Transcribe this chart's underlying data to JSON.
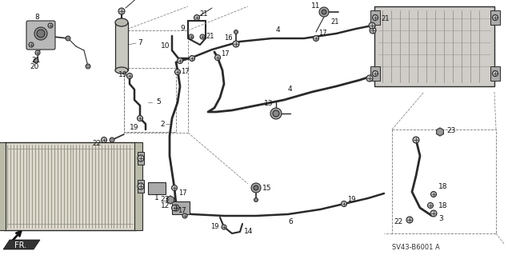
{
  "background_color": "#f5f5f0",
  "diagram_code": "SV43-B6001 A",
  "fr_label": "FR.",
  "line_color": "#2a2a2a",
  "label_color": "#111111",
  "component_fill": "#c8c8c8",
  "component_fill2": "#d8d8d0"
}
